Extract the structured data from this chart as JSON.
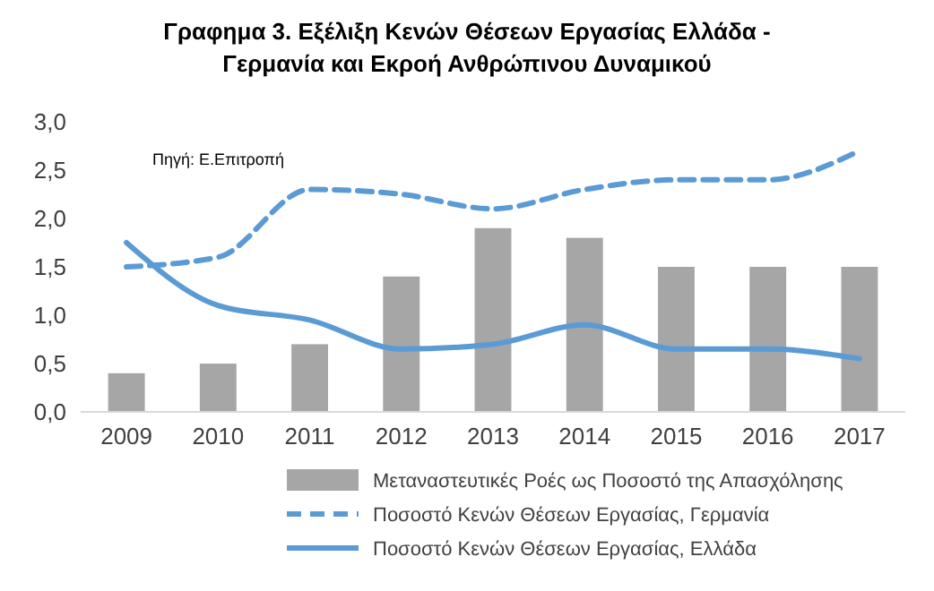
{
  "chart_data": {
    "type": "bar",
    "title": "Γραφημα 3. Εξέλιξη Κενών Θέσεων Εργασίας Ελλάδα - Γερμανία και Εκροή Ανθρώπινου Δυναμικού",
    "annotations": [
      "Πηγή: Ε.Επιτροπή"
    ],
    "categories": [
      "2009",
      "2010",
      "2011",
      "2012",
      "2013",
      "2014",
      "2015",
      "2016",
      "2017"
    ],
    "series": [
      {
        "name": "Μεταναστευτικές Ροές ως Ποσοστό της Απασχόλησης",
        "color": "#a6a6a6",
        "values": [
          0.4,
          0.5,
          0.7,
          1.4,
          1.9,
          1.8,
          1.5,
          1.5,
          1.5
        ]
      },
      {
        "name": "Ποσοστό Κενών Θέσεων Εργασίας, Γερμανία",
        "type": "line",
        "line_style": "dashed",
        "color": "#5b9bd5",
        "values": [
          1.5,
          1.6,
          2.3,
          2.25,
          2.1,
          2.3,
          2.4,
          2.4,
          2.7
        ]
      },
      {
        "name": "Ποσοστό Κενών Θέσεων Εργασίας, Ελλάδα",
        "type": "line",
        "line_style": "solid",
        "color": "#5b9bd5",
        "values": [
          1.75,
          1.1,
          0.95,
          0.65,
          0.7,
          0.9,
          0.65,
          0.65,
          0.55
        ]
      }
    ],
    "ylim": [
      0,
      3
    ],
    "yticks": [
      {
        "value": 0,
        "label": "0,0"
      },
      {
        "value": 0.5,
        "label": "0,5"
      },
      {
        "value": 1,
        "label": "1,0"
      },
      {
        "value": 1.5,
        "label": "1,5"
      },
      {
        "value": 2,
        "label": "2,0"
      },
      {
        "value": 2.5,
        "label": "2,5"
      },
      {
        "value": 3,
        "label": "3,0"
      }
    ],
    "grid": false,
    "legend": "bottom"
  }
}
